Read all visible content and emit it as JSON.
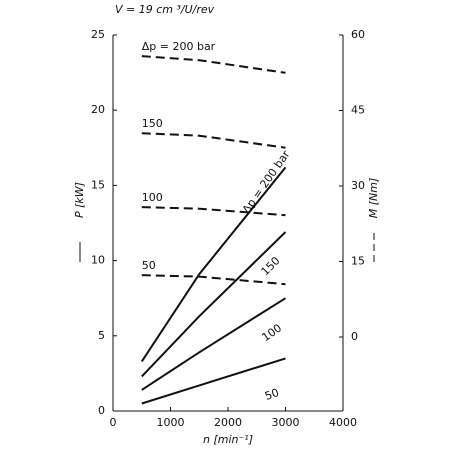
{
  "chart_data": {
    "type": "line",
    "title": "V = 19 cm ³/U/rev",
    "x_label": "n [min⁻¹]",
    "y_label": "P [kW]",
    "y2_label": "M [Nm]",
    "x": [
      500,
      1500,
      3000
    ],
    "xlim": [
      0,
      4000
    ],
    "xticks": [
      0,
      1000,
      2000,
      3000,
      4000
    ],
    "ylim": [
      0,
      25
    ],
    "yticks": [
      0,
      5,
      10,
      15,
      20,
      25
    ],
    "y2lim": [
      -14.7,
      60
    ],
    "y2ticks": [
      0,
      15,
      30,
      45,
      60
    ],
    "series": [
      {
        "name": "Δp = 200 bar",
        "color": "#111111",
        "dashed": false,
        "values": [
          3.3,
          9.1,
          16.2
        ]
      },
      {
        "name": "150",
        "color": "#111111",
        "dashed": false,
        "values": [
          2.3,
          6.3,
          11.9
        ]
      },
      {
        "name": "100",
        "color": "#111111",
        "dashed": false,
        "values": [
          1.4,
          3.9,
          7.5
        ]
      },
      {
        "name": "50",
        "color": "#111111",
        "dashed": false,
        "values": [
          0.5,
          1.7,
          3.5
        ]
      },
      {
        "name": "Δp = 200 bar",
        "color": "#111111",
        "dashed": true,
        "axis": "y2",
        "values": [
          55.8,
          55,
          52.5
        ]
      },
      {
        "name": "150",
        "color": "#111111",
        "dashed": true,
        "axis": "y2",
        "values": [
          40.5,
          40,
          37.6
        ]
      },
      {
        "name": "100",
        "color": "#111111",
        "dashed": true,
        "axis": "y2",
        "values": [
          25.8,
          25.5,
          24.2
        ]
      },
      {
        "name": "50",
        "color": "#111111",
        "dashed": true,
        "axis": "y2",
        "values": [
          12.3,
          12,
          10.5
        ]
      }
    ]
  }
}
